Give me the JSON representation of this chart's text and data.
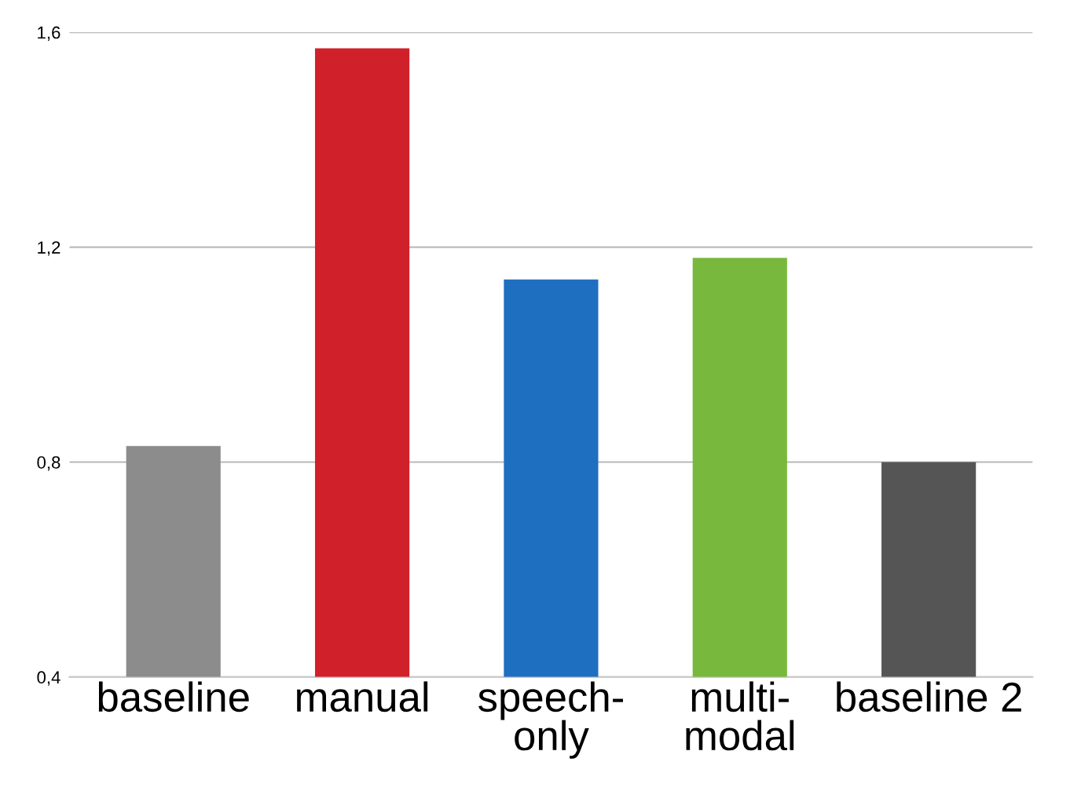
{
  "chart_data": {
    "type": "bar",
    "categories": [
      "baseline",
      "manual",
      "speech-\nonly",
      "multi-\nmodal",
      "baseline 2"
    ],
    "values": [
      0.83,
      1.57,
      1.14,
      1.18,
      0.8
    ],
    "colors": [
      "#8c8c8c",
      "#d0202a",
      "#1f6fc0",
      "#78b83c",
      "#555555"
    ],
    "ylim": [
      0.4,
      1.6
    ],
    "yticks": [
      {
        "value": 0.4,
        "label": "0,4"
      },
      {
        "value": 0.8,
        "label": "0,8"
      },
      {
        "value": 1.2,
        "label": "1,2"
      },
      {
        "value": 1.6,
        "label": "1,6"
      }
    ],
    "grid": "y"
  }
}
